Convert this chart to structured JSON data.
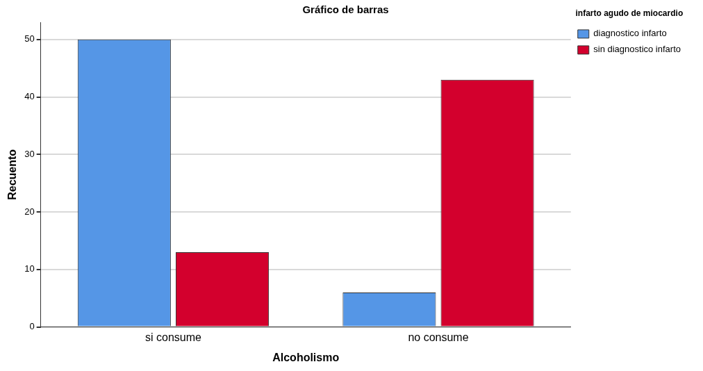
{
  "chart_data": {
    "type": "bar",
    "title": "Gráfico de barras",
    "xlabel": "Alcoholismo",
    "ylabel": "Recuento",
    "legend_title": "infarto agudo de miocardio",
    "categories": [
      "si consume",
      "no consume"
    ],
    "series": [
      {
        "name": "diagnostico infarto",
        "color": "#5596e6",
        "values": [
          50,
          6
        ]
      },
      {
        "name": "sin diagnostico infarto",
        "color": "#d3002d",
        "values": [
          13,
          43
        ]
      }
    ],
    "ylim": [
      0,
      53
    ],
    "yticks": [
      0,
      10,
      20,
      30,
      40,
      50
    ],
    "grid": "y",
    "legend": "top right"
  }
}
